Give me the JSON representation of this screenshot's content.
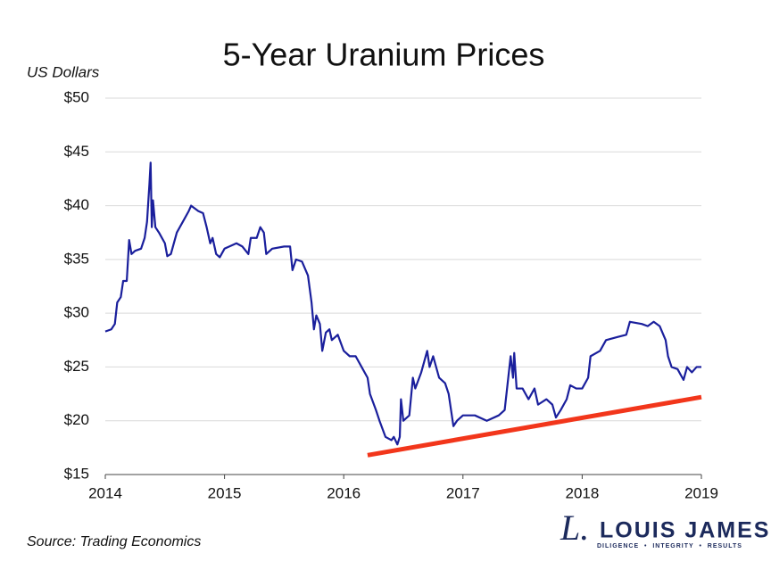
{
  "chart_data": {
    "type": "line",
    "title": "5-Year Uranium Prices",
    "y_label": "US Dollars",
    "source": "Source: Trading Economics",
    "logo": {
      "name": "LOUIS JAMES",
      "tagline": "DILIGENCE  •  INTEGRITY  •  RESULTS"
    },
    "x": [
      2014.0,
      2014.05,
      2014.08,
      2014.1,
      2014.13,
      2014.15,
      2014.18,
      2014.2,
      2014.22,
      2014.25,
      2014.3,
      2014.33,
      2014.35,
      2014.37,
      2014.38,
      2014.39,
      2014.4,
      2014.42,
      2014.45,
      2014.5,
      2014.52,
      2014.55,
      2014.6,
      2014.65,
      2014.7,
      2014.72,
      2014.78,
      2014.82,
      2014.85,
      2014.88,
      2014.9,
      2014.93,
      2014.96,
      2015.0,
      2015.1,
      2015.15,
      2015.2,
      2015.22,
      2015.27,
      2015.3,
      2015.33,
      2015.35,
      2015.4,
      2015.5,
      2015.55,
      2015.57,
      2015.6,
      2015.65,
      2015.7,
      2015.73,
      2015.75,
      2015.77,
      2015.8,
      2015.82,
      2015.85,
      2015.88,
      2015.9,
      2015.95,
      2016.0,
      2016.05,
      2016.1,
      2016.15,
      2016.2,
      2016.22,
      2016.27,
      2016.3,
      2016.35,
      2016.4,
      2016.42,
      2016.45,
      2016.47,
      2016.48,
      2016.5,
      2016.55,
      2016.58,
      2016.6,
      2016.65,
      2016.7,
      2016.72,
      2016.75,
      2016.8,
      2016.85,
      2016.88,
      2016.92,
      2016.95,
      2017.0,
      2017.1,
      2017.2,
      2017.3,
      2017.35,
      2017.37,
      2017.4,
      2017.42,
      2017.43,
      2017.45,
      2017.5,
      2017.55,
      2017.6,
      2017.63,
      2017.7,
      2017.75,
      2017.78,
      2017.82,
      2017.87,
      2017.9,
      2017.95,
      2018.0,
      2018.05,
      2018.07,
      2018.15,
      2018.2,
      2018.3,
      2018.37,
      2018.4,
      2018.5,
      2018.55,
      2018.6,
      2018.65,
      2018.7,
      2018.72,
      2018.75,
      2018.8,
      2018.85,
      2018.88,
      2018.92,
      2018.96,
      2019.0
    ],
    "series": [
      {
        "name": "Uranium",
        "color": "#1a1f9c",
        "values": [
          28.3,
          28.5,
          29,
          31,
          31.5,
          33,
          33,
          36.8,
          35.5,
          35.8,
          36,
          37,
          38.5,
          42,
          44,
          38,
          40.5,
          38,
          37.5,
          36.5,
          35.3,
          35.5,
          37.5,
          38.5,
          39.5,
          40,
          39.5,
          39.3,
          38,
          36.5,
          37,
          35.5,
          35.2,
          36,
          36.5,
          36.2,
          35.5,
          37,
          37,
          38,
          37.5,
          35.5,
          36,
          36.2,
          36.2,
          34,
          35,
          34.8,
          33.5,
          31,
          28.5,
          29.8,
          29,
          26.5,
          28.2,
          28.5,
          27.5,
          28,
          26.5,
          26,
          26,
          25,
          24,
          22.5,
          21,
          20,
          18.5,
          18.2,
          18.5,
          17.8,
          18.5,
          22,
          20,
          20.5,
          24,
          23,
          24.5,
          26.5,
          25,
          26,
          24,
          23.5,
          22.5,
          19.5,
          20,
          20.5,
          20.5,
          20,
          20.5,
          21,
          23,
          26,
          24,
          26.3,
          23,
          23,
          22,
          23,
          21.5,
          22,
          21.5,
          20.3,
          21,
          22,
          23.3,
          23,
          23,
          24,
          26,
          26.5,
          27.5,
          27.8,
          28,
          29.2,
          29,
          28.8,
          29.2,
          28.8,
          27.5,
          26,
          25,
          24.8,
          23.8,
          25,
          24.5,
          25,
          25
        ]
      }
    ],
    "trendline": {
      "x": [
        2016.2,
        2019.0
      ],
      "values": [
        16.8,
        22.2
      ],
      "color": "#f2361b"
    },
    "xlim": [
      2014,
      2019
    ],
    "xticks": [
      2014,
      2015,
      2016,
      2017,
      2018,
      2019
    ],
    "ylim": [
      15,
      50
    ],
    "yticks": [
      {
        "value": 15,
        "label": "$15"
      },
      {
        "value": 20,
        "label": "$20"
      },
      {
        "value": 25,
        "label": "$25"
      },
      {
        "value": 30,
        "label": "$30"
      },
      {
        "value": 35,
        "label": "$35"
      },
      {
        "value": 40,
        "label": "$40"
      },
      {
        "value": 45,
        "label": "$45"
      },
      {
        "value": 50,
        "label": "$50"
      }
    ],
    "grid": true
  }
}
